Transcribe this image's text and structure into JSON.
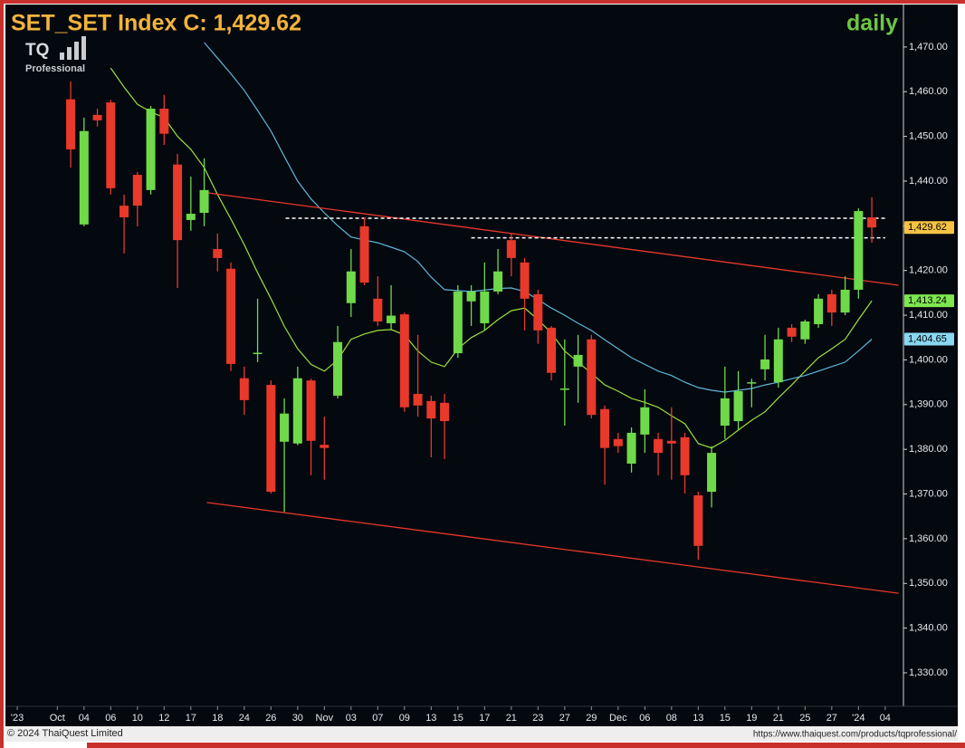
{
  "chart_data": {
    "type": "candlestick",
    "title": "SET_SET Index C: 1,429.62",
    "subtitle": "daily",
    "logo": {
      "text": "TQ",
      "subtext": "Professional"
    },
    "footer_left": "© 2024 ThaiQuest Limited",
    "footer_right": "https://www.thaiquest.com/products/tqprofessional/",
    "up_color": "#6fd94a",
    "down_color": "#e8392b",
    "open": [
      1458.3,
      1430.3,
      1454.8,
      1457.6,
      1434.5,
      1441.4,
      1438,
      1456.2,
      1443.7,
      1431.3,
      1432.9,
      1424.8,
      1420.4,
      1395.9,
      1401.3,
      1394.4,
      1381.7,
      1381.3,
      1395.4,
      1381.0,
      1392,
      1412.7,
      1429.9,
      1413.7,
      1408.2,
      1410.2,
      1392.4,
      1390.8,
      1390.4,
      1401.5,
      1413.1,
      1408.2,
      1415.3,
      1426.8,
      1421.8,
      1414.7,
      1407.2,
      1393.3,
      1398.5,
      1404.6,
      1389,
      1382.3,
      1376.8,
      1383.3,
      1382.3,
      1381.9,
      1382.7,
      1369.7,
      1370.5,
      1385.3,
      1386.3,
      1394.8,
      1397.9,
      1395,
      1407.2,
      1404.6,
      1408.0,
      1414.7,
      1410.6,
      1415.7,
      1431.9
    ],
    "high": [
      1462.3,
      1454.2,
      1456.2,
      1458.2,
      1437,
      1442,
      1456.8,
      1459.3,
      1446.1,
      1441,
      1445.1,
      1428.3,
      1421.8,
      1398.5,
      1413.7,
      1395.4,
      1391.4,
      1398.5,
      1395.8,
      1387.3,
      1407.6,
      1424.8,
      1431.9,
      1418.7,
      1416.7,
      1410.6,
      1405.6,
      1392,
      1392.4,
      1416.7,
      1416.7,
      1421.8,
      1424.8,
      1428.3,
      1422.8,
      1415.7,
      1407.6,
      1404.6,
      1405.6,
      1405.6,
      1389.8,
      1383.7,
      1384.9,
      1393.4,
      1383.7,
      1389.4,
      1383.7,
      1370.5,
      1380.7,
      1398.5,
      1397.5,
      1395.8,
      1405.6,
      1407.2,
      1408,
      1409.0,
      1414.7,
      1415.7,
      1418.7,
      1433.9,
      1436.4
    ],
    "low": [
      1443,
      1429.9,
      1452.2,
      1437,
      1423.8,
      1429.9,
      1437,
      1448.1,
      1416.1,
      1428.9,
      1429.9,
      1419.8,
      1397.5,
      1387.7,
      1399.5,
      1370.1,
      1366,
      1380.9,
      1374.2,
      1373.2,
      1391.4,
      1409.6,
      1416.7,
      1407.6,
      1406.6,
      1388.4,
      1387.3,
      1378.2,
      1377.8,
      1400.5,
      1407.6,
      1406.6,
      1414.7,
      1418.7,
      1406.6,
      1403.6,
      1395.4,
      1385.3,
      1390.4,
      1386.9,
      1372.1,
      1379.2,
      1374.8,
      1379.2,
      1374.2,
      1373.2,
      1370.1,
      1355.3,
      1367,
      1382.3,
      1384.3,
      1389.4,
      1395.4,
      1393.8,
      1404,
      1403.6,
      1407.2,
      1407.6,
      1410.0,
      1413.7,
      1426.2
    ],
    "close": [
      1447.1,
      1451.2,
      1453.6,
      1438.4,
      1431.9,
      1434.5,
      1456.2,
      1450.6,
      1426.8,
      1432.7,
      1438,
      1422.8,
      1399.1,
      1391,
      1401.6,
      1370.5,
      1388,
      1395.9,
      1381.9,
      1380.3,
      1404,
      1419.8,
      1417.3,
      1408.6,
      1409.9,
      1389.4,
      1389.8,
      1386.9,
      1386.3,
      1415.3,
      1415.3,
      1415.3,
      1419.8,
      1422.8,
      1413.7,
      1406.6,
      1397.1,
      1393.6,
      1401.1,
      1387.7,
      1380.3,
      1380.7,
      1383.7,
      1389.4,
      1379.2,
      1381.3,
      1374.2,
      1358.4,
      1379.2,
      1391.4,
      1393,
      1395,
      1400.1,
      1404.6,
      1405.2,
      1408.6,
      1413.7,
      1410.6,
      1415.7,
      1433.3,
      1429.62
    ],
    "series": [
      {
        "color": "#9be03a",
        "values": [
          null,
          null,
          null,
          1465.3,
          1461,
          1457.2,
          1455.5,
          1454.2,
          1450,
          1447.1,
          1443,
          1437,
          1431.5,
          1425.8,
          1419.5,
          1413.7,
          1407.5,
          1402.5,
          1399,
          1397.5,
          1400,
          1404.6,
          1405.8,
          1406.6,
          1406.8,
          1405.6,
          1402,
          1399.5,
          1398.5,
          1402.5,
          1405,
          1406.6,
          1409,
          1411,
          1411.6,
          1409,
          1406,
          1402,
          1399.5,
          1397,
          1394.4,
          1393,
          1391.4,
          1390.5,
          1389.4,
          1387.5,
          1385.7,
          1381.3,
          1380.3,
          1382,
          1384.3,
          1386.5,
          1388.4,
          1391.5,
          1394.4,
          1397.5,
          1400.5,
          1402.5,
          1404.6,
          1409,
          1413.24
        ]
      },
      {
        "color": "#5fb8d8",
        "values": [
          null,
          null,
          null,
          null,
          null,
          null,
          null,
          null,
          null,
          null,
          1471,
          1467.5,
          1464,
          1460.3,
          1455.8,
          1451.2,
          1445.5,
          1440,
          1436,
          1432.9,
          1430,
          1427.5,
          1426.8,
          1426.2,
          1425.2,
          1424.2,
          1422,
          1418.5,
          1415.7,
          1415.5,
          1415.3,
          1415.6,
          1416,
          1416.1,
          1415.3,
          1413.5,
          1411.6,
          1410,
          1408.2,
          1406.6,
          1404.5,
          1402.5,
          1400.5,
          1399,
          1397.5,
          1396.5,
          1395,
          1393.8,
          1393.2,
          1392.8,
          1393.2,
          1393.6,
          1394.4,
          1395,
          1395.8,
          1396.5,
          1397.5,
          1398.5,
          1399.5,
          1402,
          1404.65
        ]
      }
    ],
    "lines": [
      {
        "color": "#e8392b",
        "dash": false,
        "x": [
          10.2,
          62
        ],
        "y": [
          1437.4,
          1416.7
        ]
      },
      {
        "color": "#e8392b",
        "dash": false,
        "x": [
          10.2,
          62
        ],
        "y": [
          1368.1,
          1347.8
        ]
      },
      {
        "color": "#ffffff",
        "dash": true,
        "x": [
          16.1,
          61
        ],
        "y": [
          1431.7,
          1431.7
        ]
      },
      {
        "color": "#ffffff",
        "dash": true,
        "x": [
          30,
          61
        ],
        "y": [
          1427.3,
          1427.3
        ]
      }
    ],
    "price_tags": [
      {
        "value": 1429.62,
        "label": "1,429.62",
        "color": "#f6c343"
      },
      {
        "value": 1413.24,
        "label": "1,413.24",
        "color": "#7ee64f"
      },
      {
        "value": 1404.65,
        "label": "1,404.65",
        "color": "#8ad8f2"
      }
    ],
    "xlim": [
      -4.75,
      62.3
    ],
    "xticks": [
      {
        "value": -4,
        "label": "'23"
      },
      {
        "value": -1,
        "label": "Oct"
      },
      {
        "value": 1,
        "label": "04"
      },
      {
        "value": 3,
        "label": "06"
      },
      {
        "value": 5,
        "label": "10"
      },
      {
        "value": 7,
        "label": "12"
      },
      {
        "value": 9,
        "label": "17"
      },
      {
        "value": 11,
        "label": "18"
      },
      {
        "value": 13,
        "label": "24"
      },
      {
        "value": 15,
        "label": "26"
      },
      {
        "value": 17,
        "label": "30"
      },
      {
        "value": 19,
        "label": "Nov"
      },
      {
        "value": 21,
        "label": "03"
      },
      {
        "value": 23,
        "label": "07"
      },
      {
        "value": 25,
        "label": "09"
      },
      {
        "value": 27,
        "label": "13"
      },
      {
        "value": 29,
        "label": "15"
      },
      {
        "value": 31,
        "label": "17"
      },
      {
        "value": 33,
        "label": "21"
      },
      {
        "value": 35,
        "label": "23"
      },
      {
        "value": 37,
        "label": "27"
      },
      {
        "value": 39,
        "label": "29"
      },
      {
        "value": 41,
        "label": "Dec"
      },
      {
        "value": 43,
        "label": "06"
      },
      {
        "value": 45,
        "label": "08"
      },
      {
        "value": 47,
        "label": "13"
      },
      {
        "value": 49,
        "label": "15"
      },
      {
        "value": 51,
        "label": "19"
      },
      {
        "value": 53,
        "label": "21"
      },
      {
        "value": 55,
        "label": "25"
      },
      {
        "value": 57,
        "label": "27"
      },
      {
        "value": 59,
        "label": "'24"
      },
      {
        "value": 61,
        "label": "04"
      }
    ],
    "ylim": [
      1322.5,
      1479.5
    ],
    "yticks": [
      {
        "value": 1330,
        "label": "1,330.00"
      },
      {
        "value": 1340,
        "label": "1,340.00"
      },
      {
        "value": 1350,
        "label": "1,350.00"
      },
      {
        "value": 1360,
        "label": "1,360.00"
      },
      {
        "value": 1370,
        "label": "1,370.00"
      },
      {
        "value": 1380,
        "label": "1,380.00"
      },
      {
        "value": 1390,
        "label": "1,390.00"
      },
      {
        "value": 1400,
        "label": "1,400.00"
      },
      {
        "value": 1410,
        "label": "1,410.00"
      },
      {
        "value": 1420,
        "label": "1,420.00"
      },
      {
        "value": 1430,
        "label": "1,430.00"
      },
      {
        "value": 1440,
        "label": "1,440.00"
      },
      {
        "value": 1450,
        "label": "1,450.00"
      },
      {
        "value": 1460,
        "label": "1,460.00"
      },
      {
        "value": 1470,
        "label": "1,470.00"
      }
    ]
  }
}
